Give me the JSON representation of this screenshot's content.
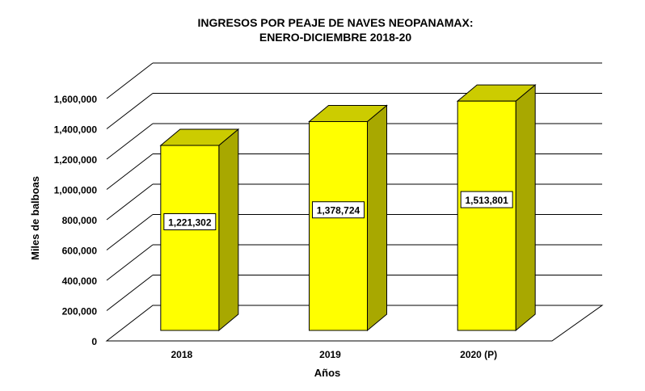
{
  "chart_data": {
    "type": "bar",
    "title": "INGRESOS POR PEAJE DE NAVES  NEOPANAMAX:",
    "subtitle": "ENERO-DICIEMBRE 2018-20",
    "xlabel": "Años",
    "ylabel": "Miles de balboas",
    "categories": [
      "2018",
      "2019",
      "2020 (P)"
    ],
    "values": [
      1221302,
      1378724,
      1513801
    ],
    "value_labels": [
      "1,221,302",
      "1,378,724",
      "1,513,801"
    ],
    "ylim": [
      0,
      1600000
    ],
    "yticks": [
      0,
      200000,
      400000,
      600000,
      800000,
      1000000,
      1200000,
      1400000,
      1600000
    ],
    "ytick_labels": [
      "0",
      "200,000",
      "400,000",
      "600,000",
      "800,000",
      "1,000,000",
      "1,200,000",
      "1,400,000",
      "1,600,000"
    ],
    "grid": true,
    "three_d": true,
    "colors": {
      "bar_front": "#ffff00",
      "bar_side": "#a8a800",
      "bar_top": "#cccc00",
      "grid": "#000000"
    }
  }
}
